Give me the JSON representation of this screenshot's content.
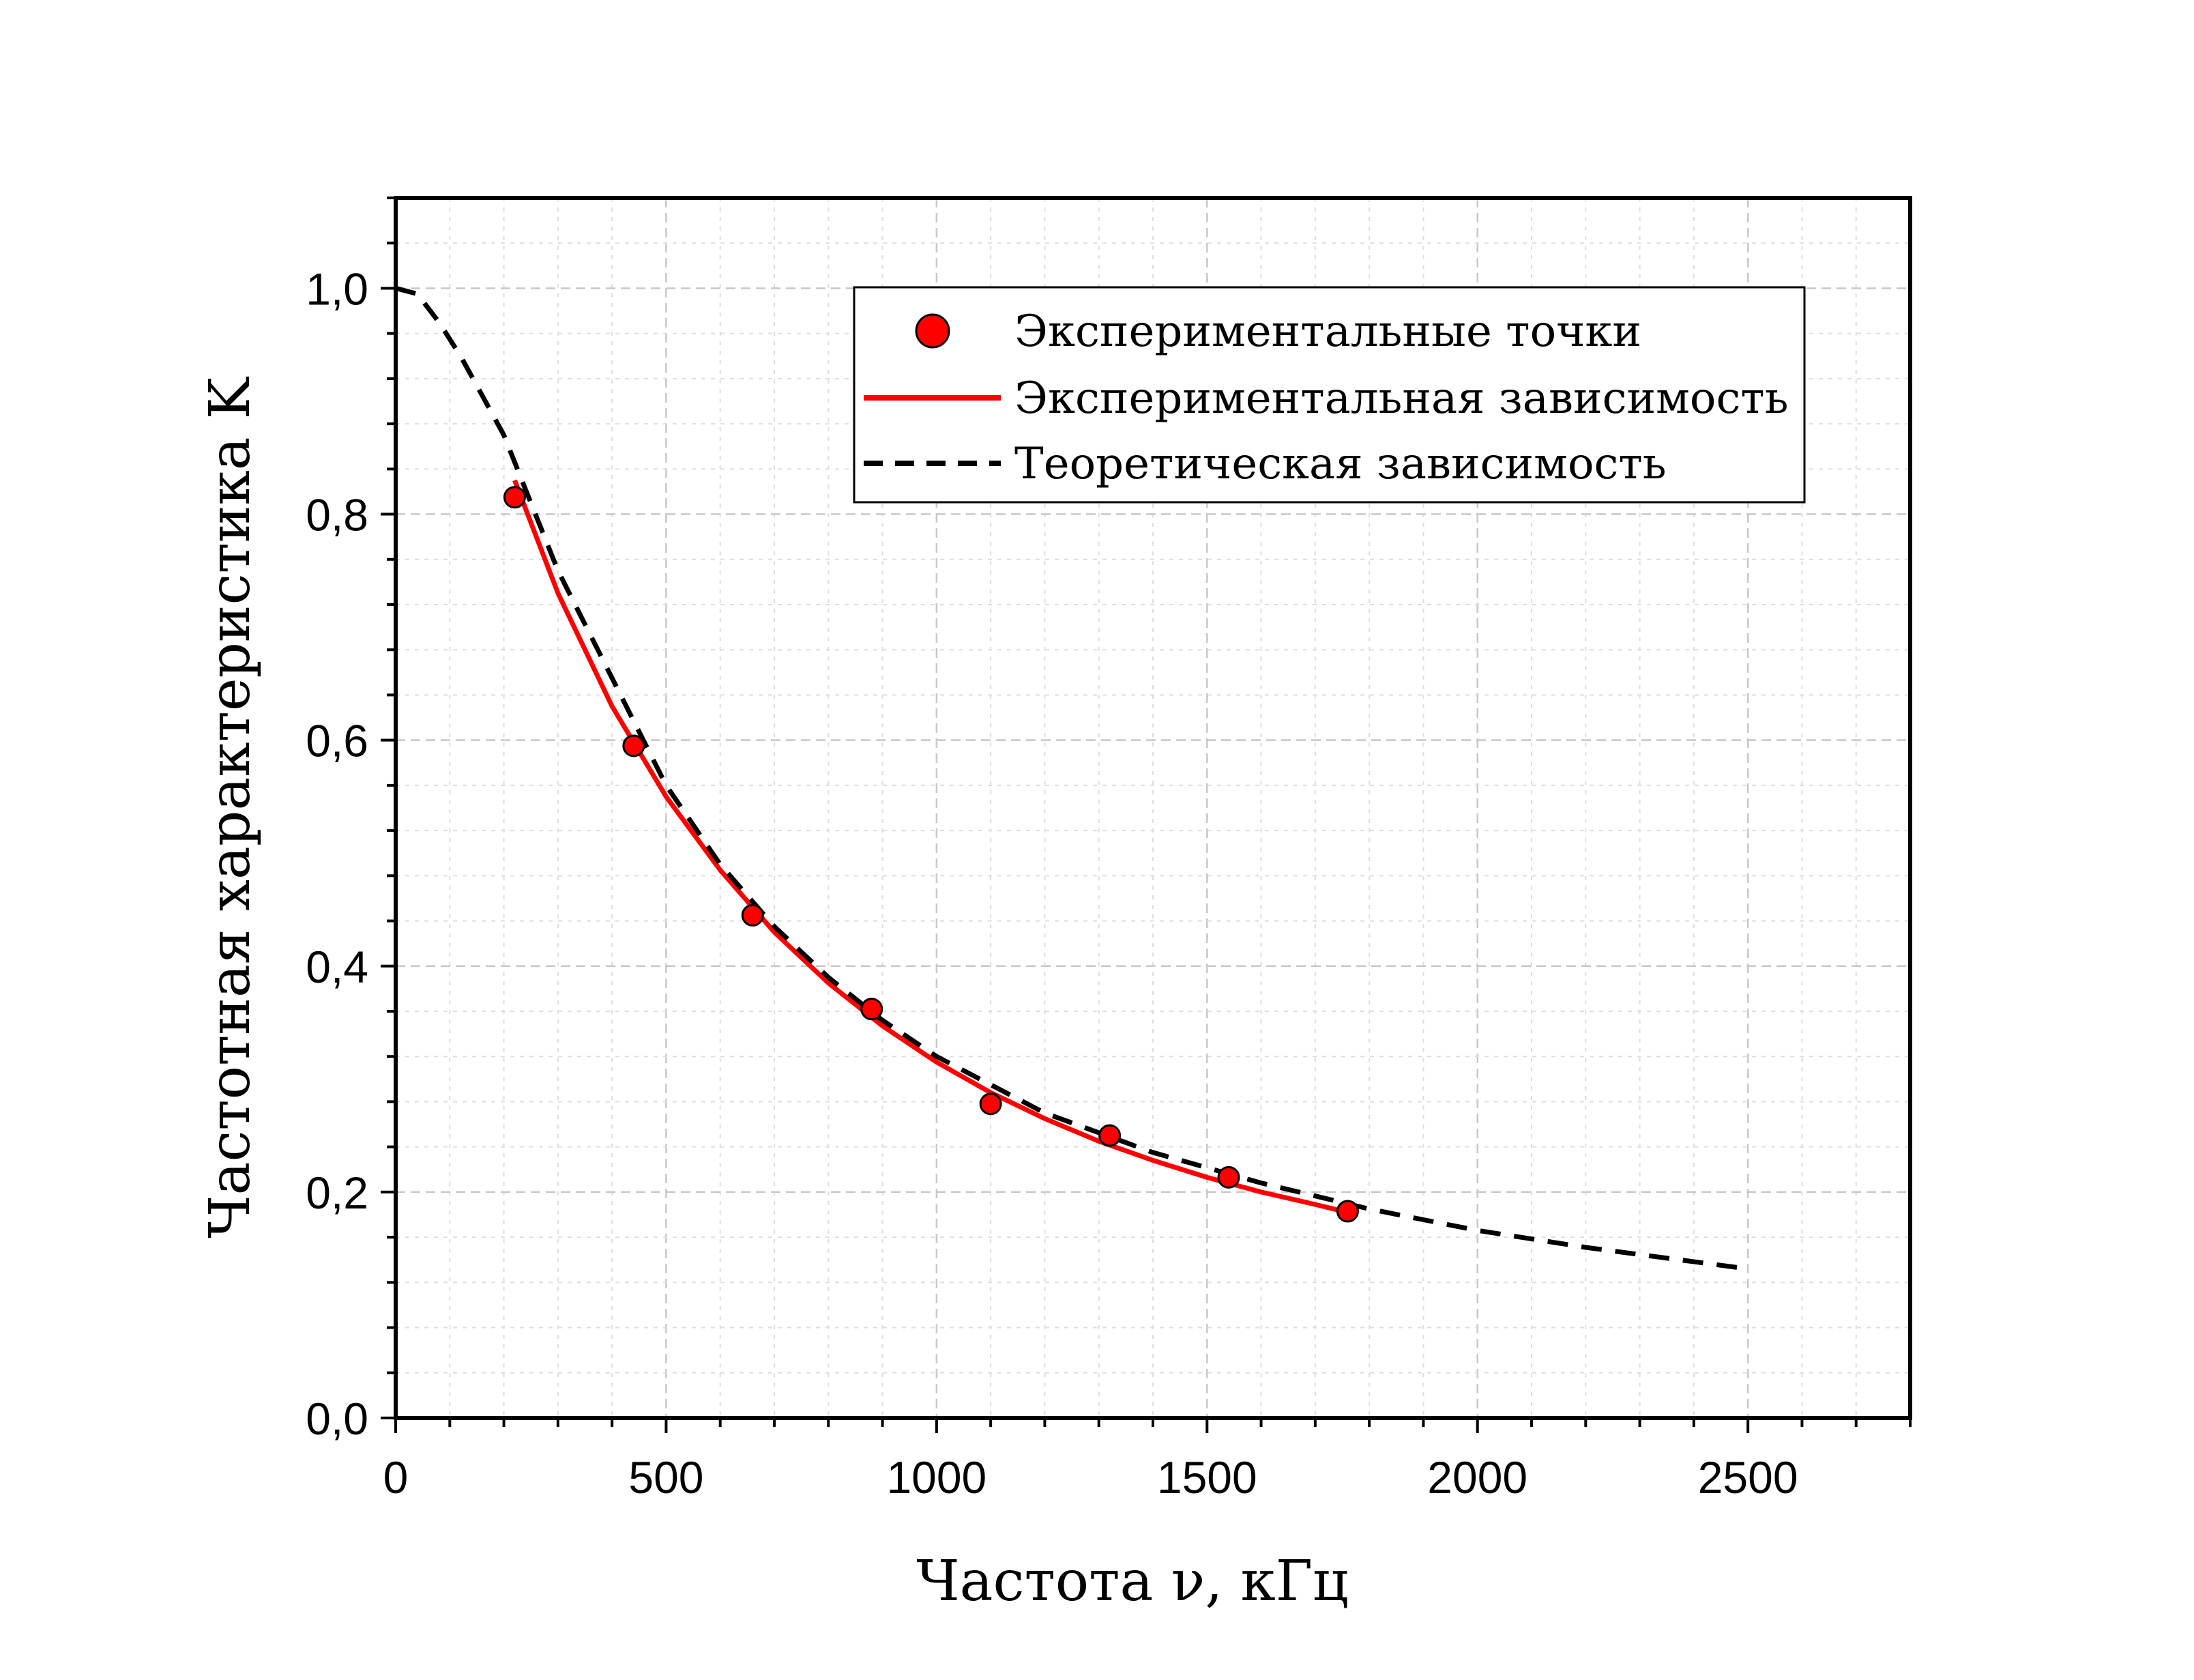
{
  "chart_data": {
    "type": "scatter",
    "xlabel": "Частота ν, кГц",
    "ylabel": "Частотная характеристика K",
    "xlim": [
      0,
      2800
    ],
    "ylim": [
      0,
      1.08
    ],
    "x_ticks": [
      0,
      500,
      1000,
      1500,
      2000,
      2500
    ],
    "x_tick_labels": [
      "0",
      "500",
      "1000",
      "1500",
      "2000",
      "2500"
    ],
    "y_ticks": [
      0,
      0.2,
      0.4,
      0.6,
      0.8,
      1.0
    ],
    "y_tick_labels": [
      "0,0",
      "0,2",
      "0,4",
      "0,6",
      "0,8",
      "1,0"
    ],
    "grid": true,
    "legend_position": "top-right",
    "series": [
      {
        "name": "Экспериментальные точки",
        "style": "markers",
        "color": "#ff0000",
        "x": [
          220,
          440,
          660,
          880,
          1100,
          1320,
          1540,
          1760
        ],
        "y": [
          0.815,
          0.595,
          0.445,
          0.362,
          0.278,
          0.25,
          0.213,
          0.183
        ]
      },
      {
        "name": "Экспериментальная зависимость",
        "style": "solid",
        "color": "#ff0000",
        "x": [
          220,
          300,
          400,
          500,
          600,
          700,
          800,
          900,
          1000,
          1100,
          1200,
          1300,
          1400,
          1500,
          1600,
          1700,
          1760
        ],
        "y": [
          0.83,
          0.73,
          0.63,
          0.55,
          0.485,
          0.43,
          0.385,
          0.347,
          0.315,
          0.288,
          0.265,
          0.245,
          0.228,
          0.213,
          0.2,
          0.189,
          0.182
        ]
      },
      {
        "name": "Теоретическая зависимость",
        "style": "dashed",
        "color": "#000000",
        "x": [
          0,
          40,
          80,
          120,
          160,
          200,
          250,
          300,
          400,
          500,
          600,
          700,
          800,
          900,
          1000,
          1200,
          1400,
          1600,
          1800,
          2000,
          2200,
          2500
        ],
        "y": [
          1.0,
          0.995,
          0.97,
          0.94,
          0.905,
          0.87,
          0.81,
          0.75,
          0.655,
          0.56,
          0.49,
          0.435,
          0.39,
          0.352,
          0.32,
          0.27,
          0.235,
          0.208,
          0.185,
          0.166,
          0.151,
          0.132
        ]
      }
    ]
  }
}
